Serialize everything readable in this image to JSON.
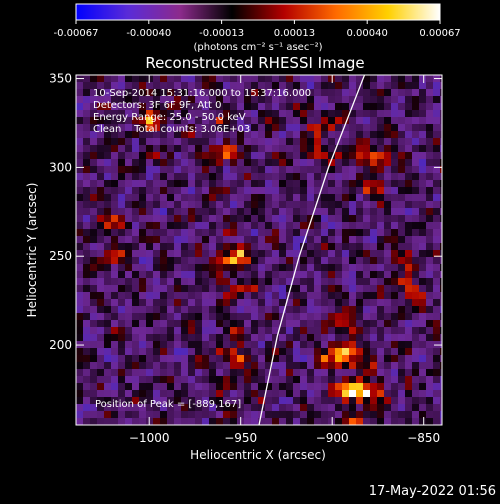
{
  "chart_data": {
    "type": "heatmap",
    "title": "Reconstructed RHESSI Image",
    "colorbar": {
      "ticks": [
        "-0.00067",
        "-0.00040",
        "-0.00013",
        "0.00013",
        "0.00040",
        "0.00067"
      ],
      "unit_label": "(photons cm⁻² s⁻¹ asec⁻²)",
      "colors": [
        "#0000ff",
        "#5a2bd8",
        "#8c2a8c",
        "#000000",
        "#b40000",
        "#ff6a00",
        "#ffd000",
        "#ffffff"
      ]
    },
    "xlabel": "Heliocentric X (arcsec)",
    "ylabel": "Heliocentric Y (arcsec)",
    "x_ticks": [
      -1000,
      -950,
      -900,
      -850
    ],
    "y_ticks": [
      200,
      250,
      300,
      350
    ],
    "xlim": [
      -1040,
      -840
    ],
    "ylim": [
      155,
      352
    ],
    "annotations": [
      "10-Sep-2014 15:31:16.000 to 15:37:16.000",
      "Detectors: 3F 6F 9F, Att 0",
      "Energy Range: 25.0 - 50.0 keV",
      "Clean    Total counts: 3.06E+03"
    ],
    "peak_label": "Position of Peak = [-889,167]",
    "peak_x": -889,
    "peak_y": 167,
    "limb_curve": [
      [
        -940,
        155
      ],
      [
        -930,
        205
      ],
      [
        -918,
        250
      ],
      [
        -902,
        300
      ],
      [
        -885,
        345
      ]
    ],
    "hotspots": [
      {
        "x": -885,
        "y": 172,
        "level": 1.0
      },
      {
        "x": -895,
        "y": 200,
        "level": 0.85
      },
      {
        "x": -878,
        "y": 300,
        "level": 0.8
      },
      {
        "x": -955,
        "y": 245,
        "level": 0.75
      },
      {
        "x": -955,
        "y": 195,
        "level": 0.6
      },
      {
        "x": -1000,
        "y": 330,
        "level": 0.55
      },
      {
        "x": -960,
        "y": 310,
        "level": 0.5
      },
      {
        "x": -1020,
        "y": 260,
        "level": 0.55
      },
      {
        "x": -860,
        "y": 240,
        "level": 0.6
      },
      {
        "x": -905,
        "y": 315,
        "level": 0.55
      }
    ]
  },
  "footer": {
    "timestamp": "17-May-2022 01:56"
  }
}
